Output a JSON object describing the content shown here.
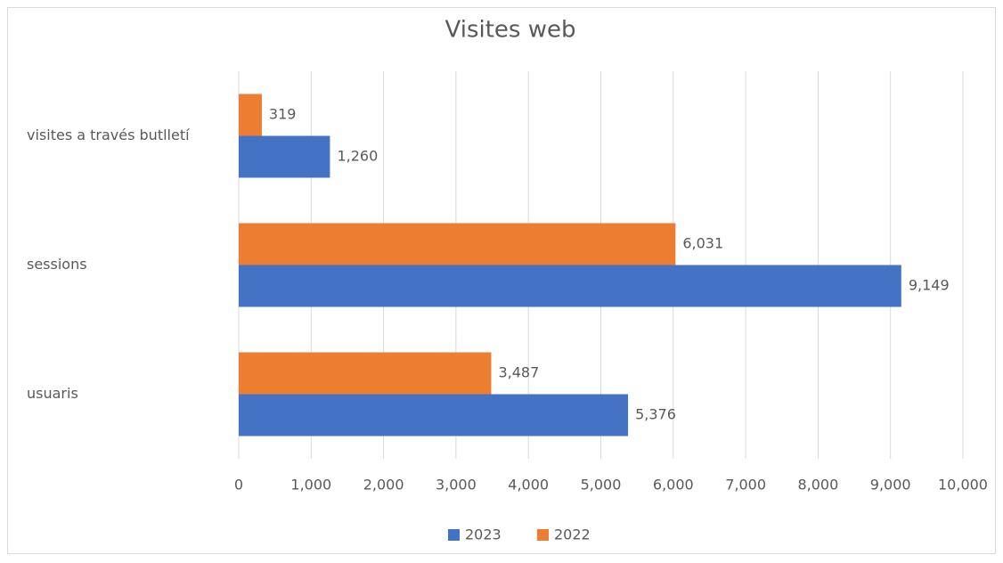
{
  "chart_data": {
    "type": "barh",
    "title": "Visites web",
    "categories": [
      "visites a través butlletí",
      "sessions",
      "usuaris"
    ],
    "series": [
      {
        "name": "2023",
        "color": "#4472c4",
        "values": [
          1260,
          9149,
          5376
        ],
        "value_labels": [
          "1,260",
          "9,149",
          "5,376"
        ]
      },
      {
        "name": "2022",
        "color": "#ed7d31",
        "values": [
          319,
          6031,
          3487
        ],
        "value_labels": [
          "319",
          "6,031",
          "3,487"
        ]
      }
    ],
    "xlim": [
      0,
      10000
    ],
    "xticks": [
      0,
      {
        "value": 1000,
        "label": "1,000"
      },
      {
        "value": 2000,
        "label": "2,000"
      },
      {
        "value": 3000,
        "label": "3,000"
      },
      {
        "value": 4000,
        "label": "4,000"
      },
      {
        "value": 5000,
        "label": "5,000"
      },
      {
        "value": 6000,
        "label": "6,000"
      },
      {
        "value": 7000,
        "label": "7,000"
      },
      {
        "value": 8000,
        "label": "8,000"
      },
      {
        "value": 9000,
        "label": "9,000"
      },
      {
        "value": 10000,
        "label": "10,000"
      }
    ],
    "grid": true,
    "legend": "bottom"
  }
}
